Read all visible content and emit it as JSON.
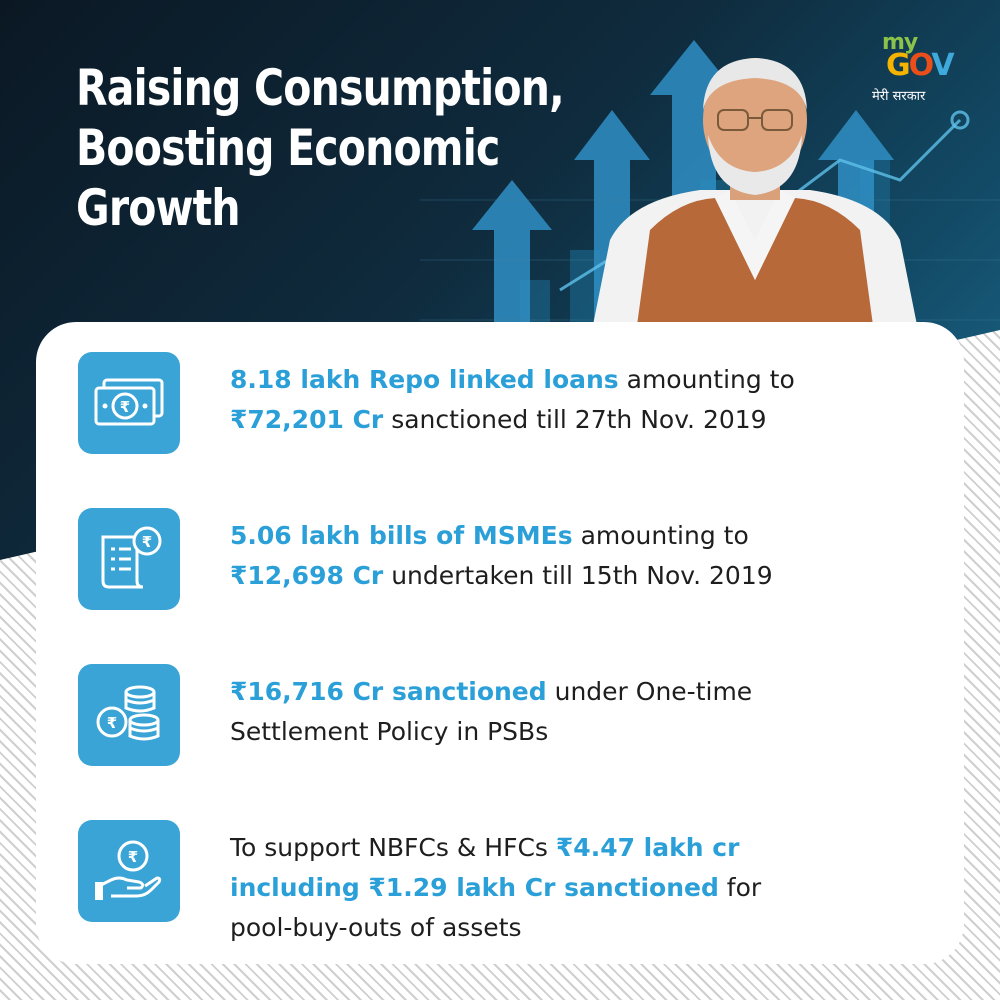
{
  "header": {
    "title_lines": [
      "Raising Consumption,",
      "Boosting Economic",
      "Growth"
    ]
  },
  "logo": {
    "my": "my",
    "gov_g": "G",
    "gov_o": "O",
    "gov_v": "V",
    "subtitle": "मेरी सरकार"
  },
  "colors": {
    "accent": "#2a9fd8",
    "icon_bg": "#3aa4d6",
    "banner_dark": "#0b1824"
  },
  "items": [
    {
      "icon": "banknote-icon",
      "line1_bold": "8.18 lakh Repo linked loans",
      "line1_rest": " amounting to",
      "line2_bold": "₹72,201 Cr",
      "line2_rest": " sanctioned till 27th Nov. 2019"
    },
    {
      "icon": "bill-receipt-icon",
      "line1_bold": "5.06 lakh bills of MSMEs",
      "line1_rest": " amounting to",
      "line2_bold": "₹12,698 Cr",
      "line2_rest": " undertaken till 15th Nov. 2019"
    },
    {
      "icon": "coin-stack-icon",
      "line1_bold": "₹16,716 Cr sanctioned",
      "line1_rest": " under One-time",
      "line2_bold": "",
      "line2_rest": "Settlement Policy in PSBs"
    },
    {
      "icon": "hand-rupee-icon",
      "line1_plain": "To support NBFCs & HFCs ",
      "line1_bold": "₹4.47 lakh cr",
      "line2_bold": "including ₹1.29 lakh Cr sanctioned",
      "line2_rest": " for",
      "line3_rest": "pool-buy-outs of assets"
    }
  ]
}
